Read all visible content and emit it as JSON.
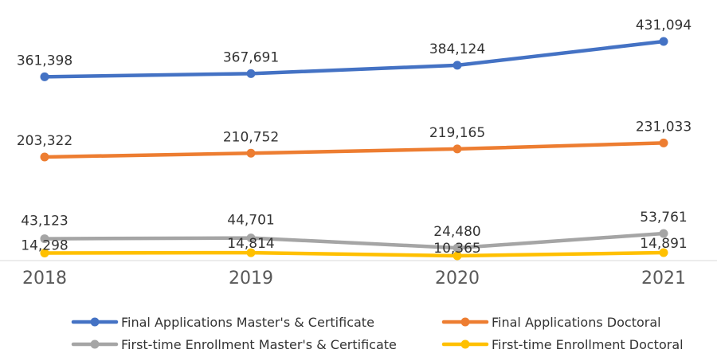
{
  "chart_data": {
    "type": "line",
    "categories": [
      "2018",
      "2019",
      "2020",
      "2021"
    ],
    "series": [
      {
        "name": "Final Applications  Master's & Certificate",
        "color": "#4472C4",
        "values": [
          361398,
          367691,
          384124,
          431094
        ],
        "labels": [
          "361,398",
          "367,691",
          "384,124",
          "431,094"
        ]
      },
      {
        "name": "Final Applications  Doctoral",
        "color": "#ED7D31",
        "values": [
          203322,
          210752,
          219165,
          231033
        ],
        "labels": [
          "203,322",
          "210,752",
          "219,165",
          "231,033"
        ]
      },
      {
        "name": "First-time Enrollment  Master's & Certificate",
        "color": "#A5A5A5",
        "values": [
          43123,
          44701,
          24480,
          53761
        ],
        "labels": [
          "43,123",
          "44,701",
          "24,480",
          "53,761"
        ]
      },
      {
        "name": "First-time Enrollment  Doctoral",
        "color": "#FFC000",
        "values": [
          14298,
          14814,
          10365,
          14891
        ],
        "labels": [
          "14,298",
          "14,814",
          "10,365",
          "14,891"
        ]
      }
    ],
    "ylim": [
      0,
      450000
    ],
    "grid": false,
    "legend": "bottom"
  }
}
